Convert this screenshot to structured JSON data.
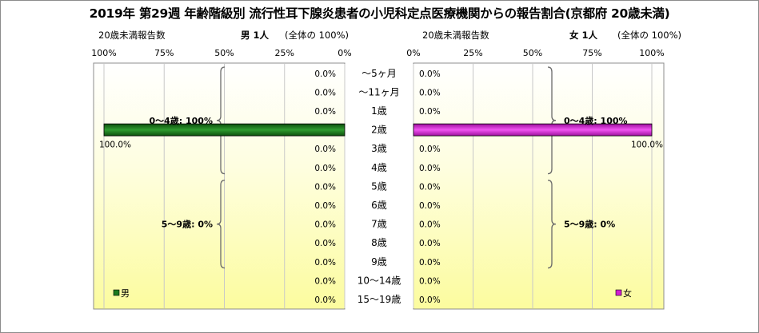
{
  "title": "2019年 第29週 年齢階級別 流行性耳下腺炎患者の小児科定点医療機関からの報告割合(京都府 20歳未満)",
  "male": {
    "sublabel": "20歳未満報告数",
    "header": "男 1人",
    "share": "(全体の 100%)",
    "legend": "男",
    "color": "#1e7a1e",
    "groups": [
      "0～4歳: 100%",
      "5～9歳: 0%"
    ]
  },
  "female": {
    "sublabel": "20歳未満報告数",
    "header": "女 1人",
    "share": "(全体の 100%)",
    "legend": "女",
    "color": "#d21ed2",
    "groups": [
      "0～4歳: 100%",
      "5～9歳: 0%"
    ]
  },
  "chart_data": {
    "type": "bar",
    "orientation": "horizontal",
    "layout": "population-pyramid",
    "categories": [
      "～5ヶ月",
      "～11ヶ月",
      "1歳",
      "2歳",
      "3歳",
      "4歳",
      "5歳",
      "6歳",
      "7歳",
      "8歳",
      "9歳",
      "10～14歳",
      "15～19歳"
    ],
    "series": [
      {
        "name": "男",
        "values": [
          0,
          0,
          0,
          100,
          0,
          0,
          0,
          0,
          0,
          0,
          0,
          0,
          0
        ],
        "labels": [
          "0.0%",
          "0.0%",
          "0.0%",
          "100.0%",
          "0.0%",
          "0.0%",
          "0.0%",
          "0.0%",
          "0.0%",
          "0.0%",
          "0.0%",
          "0.0%",
          "0.0%"
        ]
      },
      {
        "name": "女",
        "values": [
          0,
          0,
          0,
          100,
          0,
          0,
          0,
          0,
          0,
          0,
          0,
          0,
          0
        ],
        "labels": [
          "0.0%",
          "0.0%",
          "0.0%",
          "100.0%",
          "0.0%",
          "0.0%",
          "0.0%",
          "0.0%",
          "0.0%",
          "0.0%",
          "0.0%",
          "0.0%",
          "0.0%"
        ]
      }
    ],
    "xlim": [
      0,
      100
    ],
    "male_ticks": [
      "100%",
      "75%",
      "50%",
      "25%",
      "0%"
    ],
    "female_ticks": [
      "0%",
      "25%",
      "50%",
      "75%",
      "100%"
    ],
    "grid": "vertical"
  }
}
